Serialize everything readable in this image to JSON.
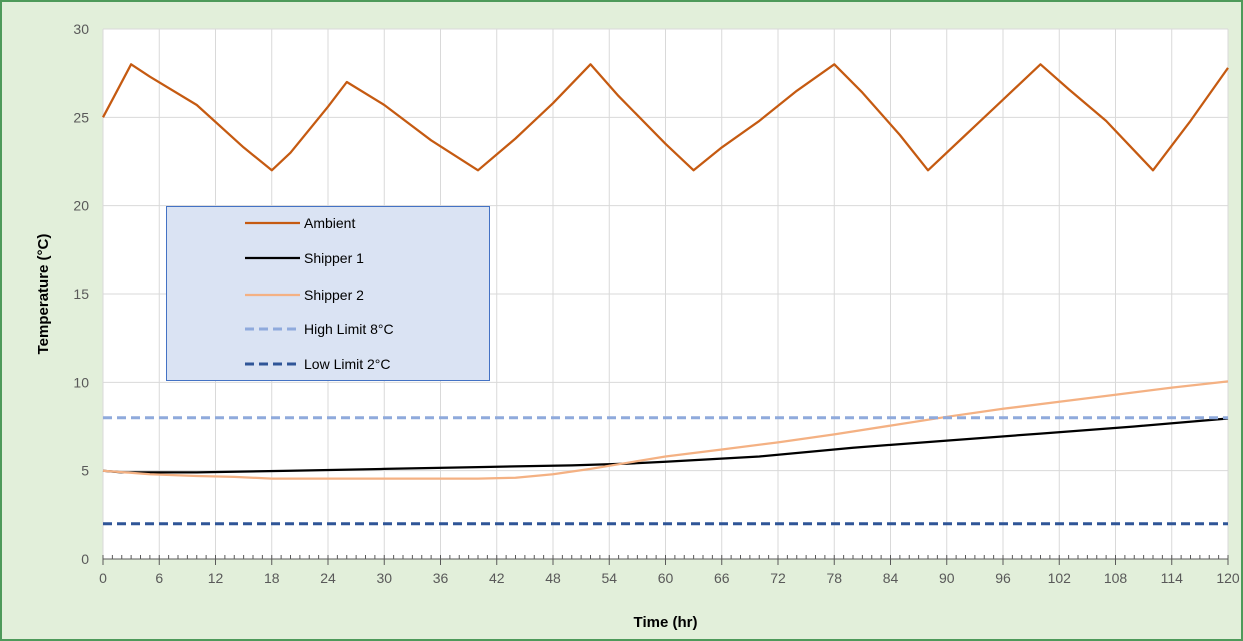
{
  "chart_data": {
    "type": "line",
    "xlabel": "Time (hr)",
    "ylabel": "Temperature (°C)",
    "xlim": [
      0,
      120
    ],
    "ylim": [
      0,
      30
    ],
    "x_ticks": [
      0,
      6,
      12,
      18,
      24,
      30,
      36,
      42,
      48,
      54,
      60,
      66,
      72,
      78,
      84,
      90,
      96,
      102,
      108,
      114,
      120
    ],
    "y_ticks": [
      0,
      5,
      10,
      15,
      20,
      25,
      30
    ],
    "grid": true,
    "legend_position": "left, inside plot",
    "series": [
      {
        "name": "Ambient",
        "color": "#c55a11",
        "style": "solid",
        "x": [
          0,
          1,
          3,
          5,
          10,
          15,
          18,
          20,
          24,
          26,
          30,
          35,
          40,
          44,
          48,
          52,
          55,
          60,
          63,
          66,
          70,
          74,
          78,
          81,
          85,
          88,
          92,
          96,
          100,
          103,
          107,
          112,
          116,
          120
        ],
        "y": [
          25,
          26,
          28,
          27.3,
          25.7,
          23.3,
          22,
          23,
          25.6,
          27,
          25.7,
          23.7,
          22,
          23.8,
          25.8,
          28,
          26.2,
          23.5,
          22,
          23.3,
          24.8,
          26.5,
          28,
          26.4,
          24,
          22,
          24,
          26,
          28,
          26.6,
          24.8,
          22,
          24.8,
          27.8
        ]
      },
      {
        "name": "Shipper 1",
        "color": "#000000",
        "style": "solid",
        "x": [
          0,
          2,
          10,
          20,
          30,
          40,
          50,
          56,
          60,
          70,
          80,
          90,
          100,
          110,
          120
        ],
        "y": [
          5,
          4.9,
          4.9,
          5,
          5.1,
          5.2,
          5.3,
          5.4,
          5.5,
          5.8,
          6.3,
          6.7,
          7.1,
          7.5,
          7.95
        ]
      },
      {
        "name": "Shipper 2",
        "color": "#f4b183",
        "style": "solid",
        "x": [
          0,
          5,
          10,
          14,
          18,
          25,
          30,
          40,
          44,
          48,
          52,
          56,
          60,
          66,
          72,
          78,
          84,
          90,
          96,
          102,
          108,
          114,
          120
        ],
        "y": [
          5,
          4.8,
          4.7,
          4.65,
          4.55,
          4.55,
          4.55,
          4.55,
          4.6,
          4.8,
          5.1,
          5.45,
          5.8,
          6.2,
          6.6,
          7.05,
          7.55,
          8.05,
          8.5,
          8.9,
          9.3,
          9.7,
          10.05
        ]
      },
      {
        "name": "High Limit 8°C",
        "color": "#8faadc",
        "style": "dashed",
        "x": [
          0,
          120
        ],
        "y": [
          8,
          8
        ]
      },
      {
        "name": "Low Limit 2°C",
        "color": "#2f5597",
        "style": "dashed",
        "x": [
          0,
          120
        ],
        "y": [
          2,
          2
        ]
      }
    ]
  }
}
